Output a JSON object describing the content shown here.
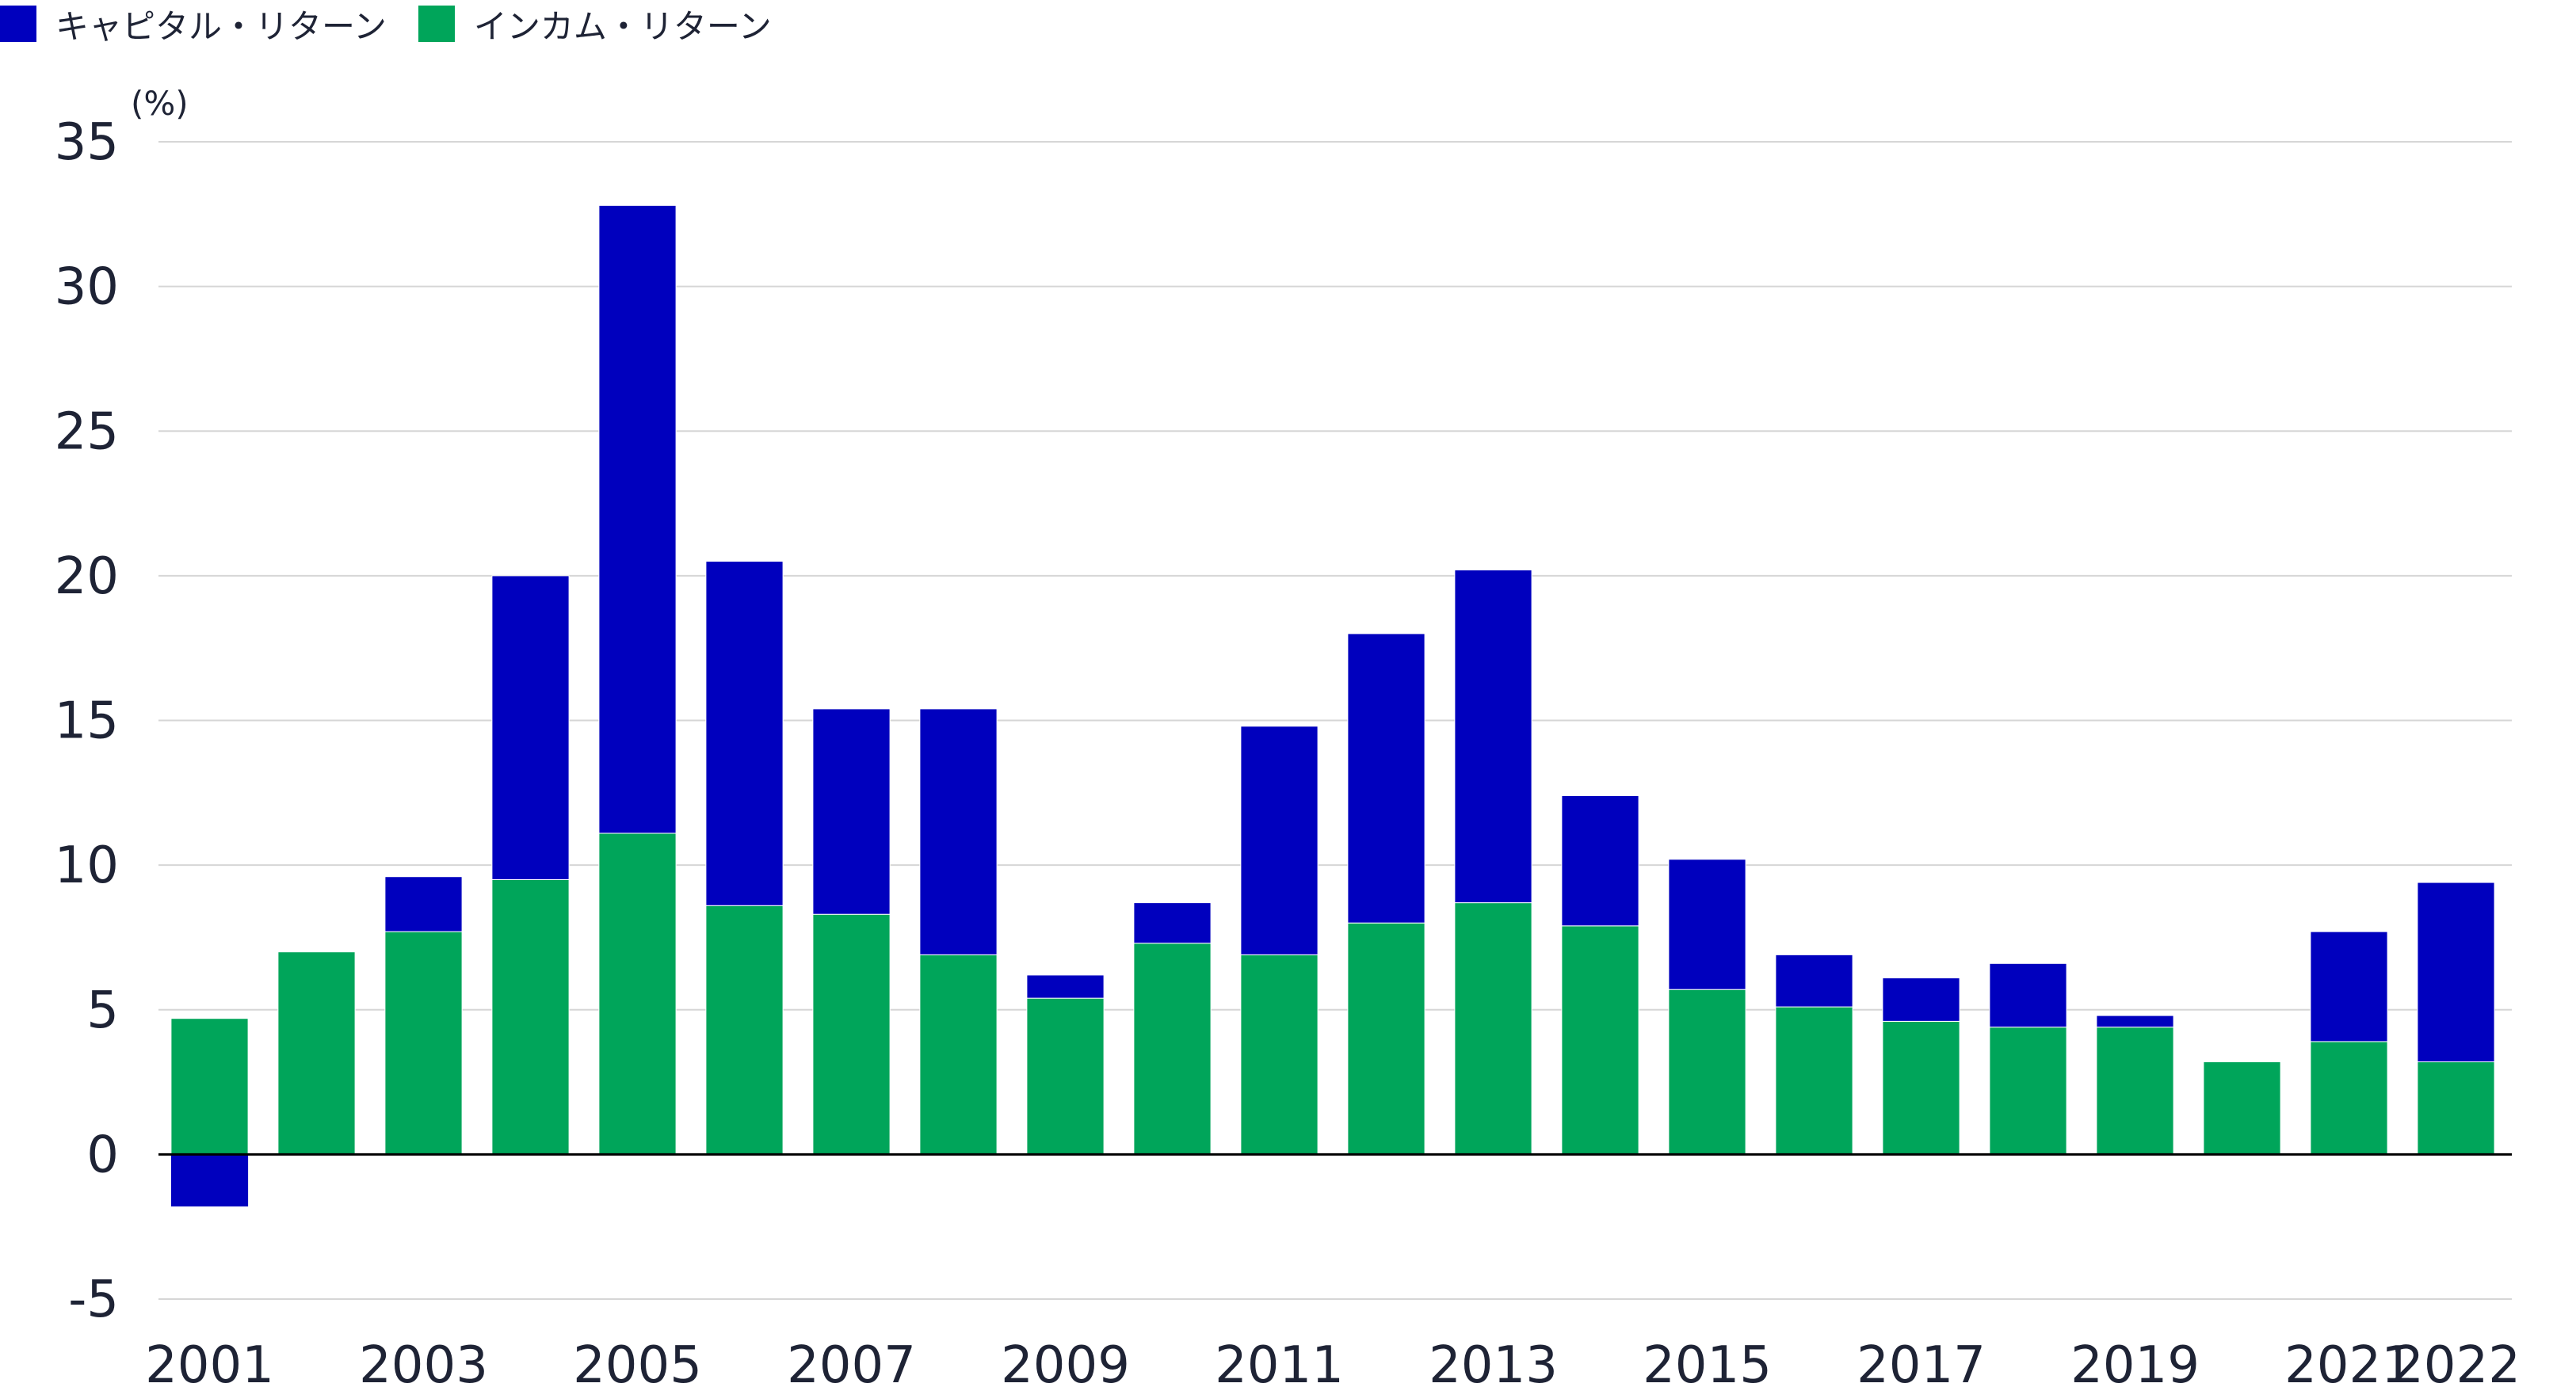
{
  "chart_data": {
    "type": "bar",
    "stacked": true,
    "unit_label": "(%)",
    "categories": [
      "2001",
      "2002",
      "2003",
      "2004",
      "2005",
      "2006",
      "2007",
      "2008",
      "2009",
      "2010",
      "2011",
      "2012",
      "2013",
      "2014",
      "2015",
      "2016",
      "2017",
      "2018",
      "2019",
      "2020",
      "2021",
      "2022"
    ],
    "x_tick_labels": [
      "2001",
      "",
      "2003",
      "",
      "2005",
      "",
      "2007",
      "",
      "2009",
      "",
      "2011",
      "",
      "2013",
      "",
      "2015",
      "",
      "2017",
      "",
      "2019",
      "",
      "2021",
      "2022"
    ],
    "series": [
      {
        "name": "キャピタル・リターン",
        "color": "#0000be",
        "values": [
          -1.8,
          0.0,
          1.9,
          10.5,
          21.7,
          11.9,
          7.1,
          8.5,
          0.8,
          1.4,
          7.9,
          10.0,
          11.5,
          4.5,
          4.5,
          1.8,
          1.5,
          2.2,
          0.4,
          0.0,
          3.8,
          6.2
        ]
      },
      {
        "name": "インカム・リターン",
        "color": "#00a55a",
        "values": [
          4.7,
          7.0,
          7.7,
          9.5,
          11.1,
          8.6,
          8.3,
          6.9,
          5.4,
          7.3,
          6.9,
          8.0,
          8.7,
          7.9,
          5.7,
          5.1,
          4.6,
          4.4,
          4.4,
          3.2,
          3.9,
          3.2
        ]
      }
    ],
    "ylim": [
      -5,
      35
    ],
    "y_ticks": [
      -5,
      0,
      5,
      10,
      15,
      20,
      25,
      30,
      35
    ],
    "grid": true,
    "legend_position": "top-left",
    "title": "",
    "xlabel": "",
    "ylabel": ""
  }
}
